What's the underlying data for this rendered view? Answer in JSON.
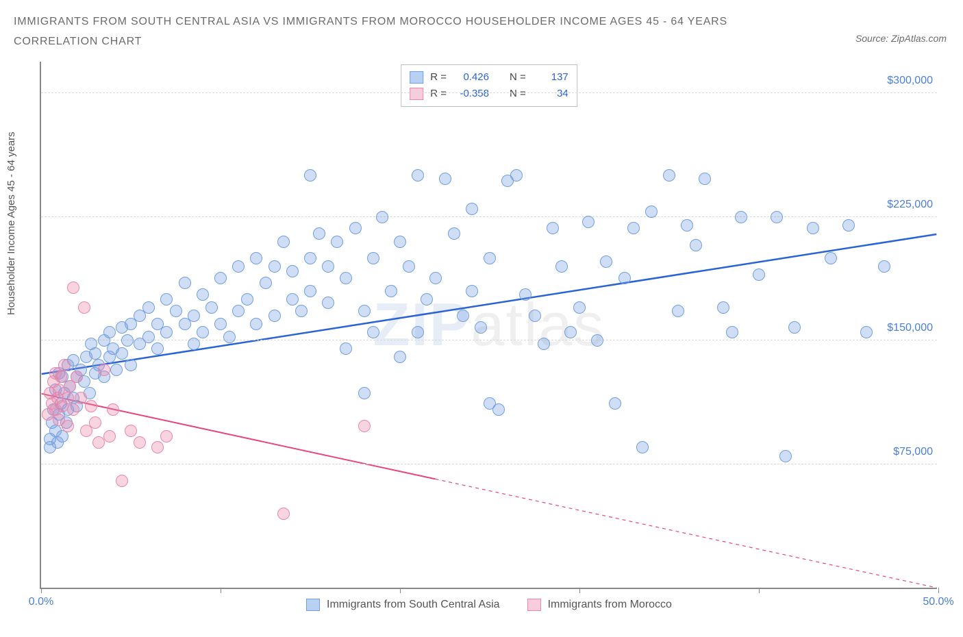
{
  "title_line1": "IMMIGRANTS FROM SOUTH CENTRAL ASIA VS IMMIGRANTS FROM MOROCCO HOUSEHOLDER INCOME AGES 45 - 64 YEARS",
  "title_line2": "CORRELATION CHART",
  "source": "Source: ZipAtlas.com",
  "ylabel": "Householder Income Ages 45 - 64 years",
  "watermark_zip": "ZIP",
  "watermark_atlas": "atlas",
  "chart": {
    "type": "scatter",
    "xlim": [
      0,
      50
    ],
    "ylim": [
      0,
      320000
    ],
    "x_ticks": [
      0,
      10,
      20,
      30,
      40,
      50
    ],
    "x_tick_labels": [
      "0.0%",
      "",
      "",
      "",
      "",
      "50.0%"
    ],
    "y_ticks": [
      75000,
      150000,
      225000,
      300000
    ],
    "y_tick_labels": [
      "$75,000",
      "$150,000",
      "$225,000",
      "$300,000"
    ],
    "grid_color": "#d8d8d8",
    "axis_color": "#888888",
    "background_color": "#ffffff",
    "series": [
      {
        "name": "Immigrants from South Central Asia",
        "color_fill": "rgba(120,160,225,0.35)",
        "color_stroke": "#6f9fe0",
        "trend_color": "#2a62d8",
        "trend_width": 2.5,
        "trend_dash": "none",
        "trend_y_at_xmin": 130000,
        "trend_y_at_xmax": 215000,
        "R": "0.426",
        "N": "137",
        "marker_radius": 9,
        "points": [
          [
            0.5,
            85000
          ],
          [
            0.5,
            90000
          ],
          [
            0.6,
            100000
          ],
          [
            0.7,
            108000
          ],
          [
            0.8,
            95000
          ],
          [
            0.8,
            120000
          ],
          [
            0.9,
            88000
          ],
          [
            1.0,
            105000
          ],
          [
            1.0,
            130000
          ],
          [
            1.1,
            112000
          ],
          [
            1.2,
            92000
          ],
          [
            1.2,
            128000
          ],
          [
            1.3,
            118000
          ],
          [
            1.4,
            100000
          ],
          [
            1.5,
            135000
          ],
          [
            1.5,
            108000
          ],
          [
            1.6,
            122000
          ],
          [
            1.8,
            115000
          ],
          [
            1.8,
            138000
          ],
          [
            2.0,
            128000
          ],
          [
            2.0,
            110000
          ],
          [
            2.2,
            132000
          ],
          [
            2.4,
            125000
          ],
          [
            2.5,
            140000
          ],
          [
            2.7,
            118000
          ],
          [
            2.8,
            148000
          ],
          [
            3.0,
            130000
          ],
          [
            3.0,
            142000
          ],
          [
            3.2,
            135000
          ],
          [
            3.5,
            150000
          ],
          [
            3.5,
            128000
          ],
          [
            3.8,
            140000
          ],
          [
            3.8,
            155000
          ],
          [
            4.0,
            145000
          ],
          [
            4.2,
            132000
          ],
          [
            4.5,
            158000
          ],
          [
            4.5,
            142000
          ],
          [
            4.8,
            150000
          ],
          [
            5.0,
            160000
          ],
          [
            5.0,
            135000
          ],
          [
            5.5,
            148000
          ],
          [
            5.5,
            165000
          ],
          [
            6.0,
            152000
          ],
          [
            6.0,
            170000
          ],
          [
            6.5,
            160000
          ],
          [
            6.5,
            145000
          ],
          [
            7.0,
            175000
          ],
          [
            7.0,
            155000
          ],
          [
            7.5,
            168000
          ],
          [
            8.0,
            160000
          ],
          [
            8.0,
            185000
          ],
          [
            8.5,
            165000
          ],
          [
            8.5,
            148000
          ],
          [
            9.0,
            178000
          ],
          [
            9.0,
            155000
          ],
          [
            9.5,
            170000
          ],
          [
            10.0,
            188000
          ],
          [
            10.0,
            160000
          ],
          [
            10.5,
            152000
          ],
          [
            11.0,
            195000
          ],
          [
            11.0,
            168000
          ],
          [
            11.5,
            175000
          ],
          [
            12.0,
            200000
          ],
          [
            12.0,
            160000
          ],
          [
            12.5,
            185000
          ],
          [
            13.0,
            195000
          ],
          [
            13.0,
            165000
          ],
          [
            13.5,
            210000
          ],
          [
            14.0,
            175000
          ],
          [
            14.0,
            192000
          ],
          [
            14.5,
            168000
          ],
          [
            15.0,
            250000
          ],
          [
            15.0,
            180000
          ],
          [
            15.0,
            200000
          ],
          [
            15.5,
            215000
          ],
          [
            16.0,
            173000
          ],
          [
            16.0,
            195000
          ],
          [
            16.5,
            210000
          ],
          [
            17.0,
            145000
          ],
          [
            17.0,
            188000
          ],
          [
            17.5,
            218000
          ],
          [
            18.0,
            168000
          ],
          [
            18.0,
            118000
          ],
          [
            18.5,
            200000
          ],
          [
            18.5,
            155000
          ],
          [
            19.0,
            225000
          ],
          [
            19.5,
            180000
          ],
          [
            20.0,
            210000
          ],
          [
            20.0,
            140000
          ],
          [
            20.5,
            195000
          ],
          [
            21.0,
            155000
          ],
          [
            21.0,
            250000
          ],
          [
            21.5,
            175000
          ],
          [
            22.0,
            188000
          ],
          [
            22.5,
            248000
          ],
          [
            23.0,
            215000
          ],
          [
            23.5,
            165000
          ],
          [
            24.0,
            230000
          ],
          [
            24.0,
            180000
          ],
          [
            24.5,
            158000
          ],
          [
            25.0,
            200000
          ],
          [
            25.0,
            112000
          ],
          [
            25.5,
            108000
          ],
          [
            26.0,
            247000
          ],
          [
            26.5,
            250000
          ],
          [
            27.0,
            178000
          ],
          [
            27.5,
            165000
          ],
          [
            28.0,
            148000
          ],
          [
            28.5,
            218000
          ],
          [
            29.0,
            195000
          ],
          [
            29.5,
            155000
          ],
          [
            30.0,
            170000
          ],
          [
            30.5,
            222000
          ],
          [
            31.0,
            150000
          ],
          [
            31.5,
            198000
          ],
          [
            32.0,
            112000
          ],
          [
            32.5,
            188000
          ],
          [
            33.0,
            218000
          ],
          [
            33.5,
            85000
          ],
          [
            34.0,
            228000
          ],
          [
            35.0,
            250000
          ],
          [
            35.5,
            168000
          ],
          [
            36.0,
            220000
          ],
          [
            36.5,
            208000
          ],
          [
            37.0,
            248000
          ],
          [
            38.0,
            170000
          ],
          [
            38.5,
            155000
          ],
          [
            39.0,
            225000
          ],
          [
            40.0,
            190000
          ],
          [
            41.0,
            225000
          ],
          [
            41.5,
            80000
          ],
          [
            42.0,
            158000
          ],
          [
            43.0,
            218000
          ],
          [
            44.0,
            200000
          ],
          [
            45.0,
            220000
          ],
          [
            46.0,
            155000
          ],
          [
            47.0,
            195000
          ]
        ]
      },
      {
        "name": "Immigrants from Morocco",
        "color_fill": "rgba(235,130,165,0.35)",
        "color_stroke": "#e887ac",
        "trend_color": "#e7457b",
        "trend_width": 2,
        "trend_solid_until_x": 22,
        "trend_y_at_xmin": 118000,
        "trend_y_at_xmax": 0,
        "R": "-0.358",
        "N": "34",
        "marker_radius": 9,
        "points": [
          [
            0.4,
            105000
          ],
          [
            0.5,
            118000
          ],
          [
            0.6,
            112000
          ],
          [
            0.7,
            125000
          ],
          [
            0.8,
            108000
          ],
          [
            0.8,
            130000
          ],
          [
            0.9,
            115000
          ],
          [
            1.0,
            120000
          ],
          [
            1.0,
            102000
          ],
          [
            1.1,
            128000
          ],
          [
            1.2,
            110000
          ],
          [
            1.3,
            135000
          ],
          [
            1.5,
            115000
          ],
          [
            1.5,
            98000
          ],
          [
            1.6,
            122000
          ],
          [
            1.8,
            108000
          ],
          [
            1.8,
            182000
          ],
          [
            2.0,
            128000
          ],
          [
            2.2,
            115000
          ],
          [
            2.4,
            170000
          ],
          [
            2.5,
            95000
          ],
          [
            2.8,
            110000
          ],
          [
            3.0,
            100000
          ],
          [
            3.2,
            88000
          ],
          [
            3.5,
            132000
          ],
          [
            3.8,
            92000
          ],
          [
            4.0,
            108000
          ],
          [
            4.5,
            65000
          ],
          [
            5.0,
            95000
          ],
          [
            5.5,
            88000
          ],
          [
            6.5,
            85000
          ],
          [
            7.0,
            92000
          ],
          [
            13.5,
            45000
          ],
          [
            18.0,
            98000
          ]
        ]
      }
    ]
  },
  "legend": {
    "swatch1_fill": "#b8d0f2",
    "swatch1_stroke": "#6f9fe0",
    "swatch2_fill": "#f7cdde",
    "swatch2_stroke": "#e887ac",
    "row1_r_label": "R =",
    "row1_n_label": "N =",
    "row2_r_label": "R =",
    "row2_n_label": "N =",
    "val_color_blue": "#2a62d8",
    "val_color_pink": "#e7457b"
  }
}
